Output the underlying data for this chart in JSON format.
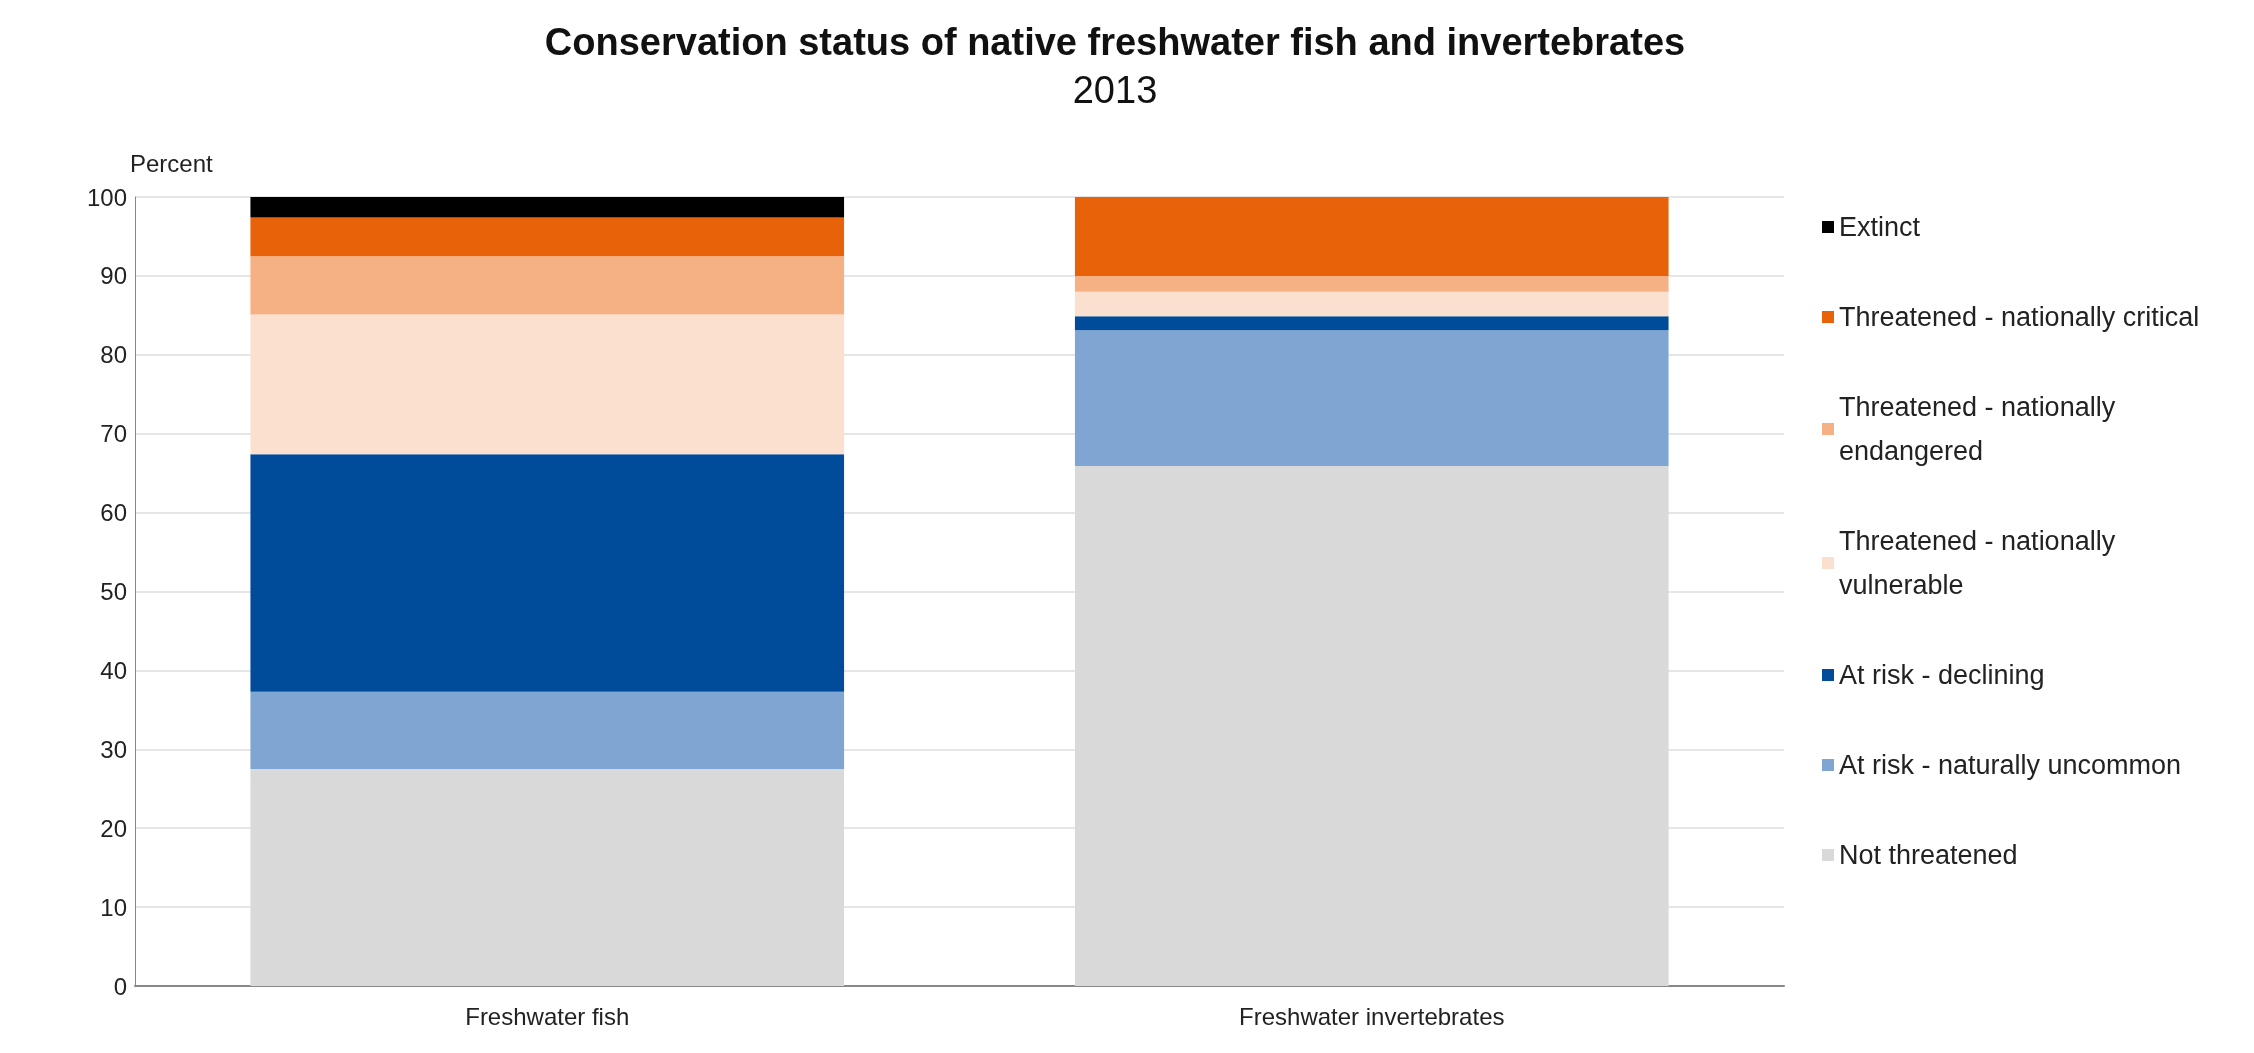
{
  "chart_data": {
    "type": "bar",
    "title": "Conservation status of native freshwater fish and invertebrates",
    "subtitle": "2013",
    "ylabel": "Percent",
    "categories": [
      "Freshwater fish",
      "Freshwater invertebrates"
    ],
    "stacked": true,
    "ylim": [
      0,
      100
    ],
    "yticks": [
      0,
      10,
      20,
      30,
      40,
      50,
      60,
      70,
      80,
      90,
      100
    ],
    "grid": "y",
    "legend": "right",
    "series": [
      {
        "name": "Not threatened",
        "color": "#d9d9d9",
        "values": [
          27.5,
          65.9
        ]
      },
      {
        "name": "At risk - naturally uncommon",
        "color": "#7fa6d3",
        "values": [
          9.8,
          17.2
        ]
      },
      {
        "name": "At risk - declining",
        "color": "#004c9b",
        "values": [
          30.1,
          1.8
        ]
      },
      {
        "name": "Threatened - nationally vulnerable",
        "color": "#fbe0d0",
        "values": [
          17.7,
          3.1
        ]
      },
      {
        "name": "Threatened - nationally endangered",
        "color": "#f5b183",
        "values": [
          7.4,
          2.0
        ]
      },
      {
        "name": "Threatened - nationally critical",
        "color": "#e8620a",
        "values": [
          4.9,
          10.0
        ]
      },
      {
        "name": "Extinct",
        "color": "#000000",
        "values": [
          2.6,
          0
        ]
      }
    ]
  }
}
